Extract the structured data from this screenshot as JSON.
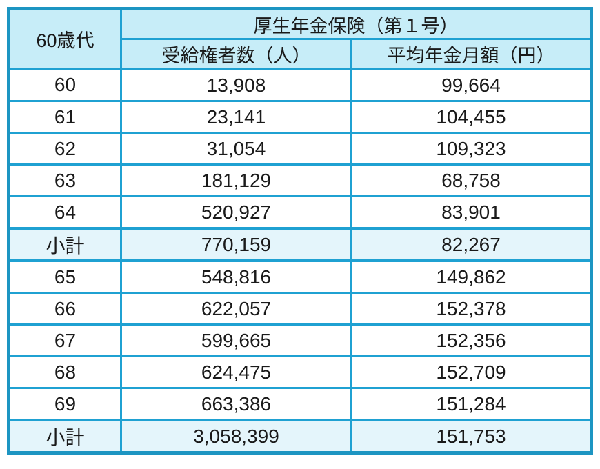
{
  "table": {
    "corner_header": "60歳代",
    "group_header": "厚生年金保険（第１号）",
    "col_headers": [
      "受給権者数（人）",
      "平均年金月額（円）"
    ],
    "rows": [
      {
        "age": "60",
        "recipients": "13,908",
        "monthly": "99,664"
      },
      {
        "age": "61",
        "recipients": "23,141",
        "monthly": "104,455"
      },
      {
        "age": "62",
        "recipients": "31,054",
        "monthly": "109,323"
      },
      {
        "age": "63",
        "recipients": "181,129",
        "monthly": "68,758"
      },
      {
        "age": "64",
        "recipients": "520,927",
        "monthly": "83,901"
      },
      {
        "age": "小計",
        "recipients": "770,159",
        "monthly": "82,267"
      },
      {
        "age": "65",
        "recipients": "548,816",
        "monthly": "149,862"
      },
      {
        "age": "66",
        "recipients": "622,057",
        "monthly": "152,378"
      },
      {
        "age": "67",
        "recipients": "599,665",
        "monthly": "152,356"
      },
      {
        "age": "68",
        "recipients": "624,475",
        "monthly": "152,709"
      },
      {
        "age": "69",
        "recipients": "663,386",
        "monthly": "151,284"
      },
      {
        "age": "小計",
        "recipients": "3,058,399",
        "monthly": "151,753"
      }
    ]
  },
  "colors": {
    "outer_border": "#1d95c2",
    "grid_border": "#1fa1d2",
    "header_bg": "#c7edf8",
    "subtotal_bg": "#e4f5fb",
    "cell_bg": "#ffffff",
    "text": "#1a1a1a"
  },
  "chart_data": {
    "type": "table",
    "title": "厚生年金保険（第１号）",
    "row_group_label": "60歳代",
    "columns": [
      "60歳代",
      "受給権者数（人）",
      "平均年金月額（円）"
    ],
    "rows": [
      [
        "60",
        13908,
        99664
      ],
      [
        "61",
        23141,
        104455
      ],
      [
        "62",
        31054,
        109323
      ],
      [
        "63",
        181129,
        68758
      ],
      [
        "64",
        520927,
        83901
      ],
      [
        "小計",
        770159,
        82267
      ],
      [
        "65",
        548816,
        149862
      ],
      [
        "66",
        622057,
        152378
      ],
      [
        "67",
        599665,
        152356
      ],
      [
        "68",
        624475,
        152709
      ],
      [
        "69",
        663386,
        151284
      ],
      [
        "小計",
        3058399,
        151753
      ]
    ],
    "subtotal_row_indices": [
      5,
      11
    ],
    "grid": true,
    "legend_position": "none"
  }
}
